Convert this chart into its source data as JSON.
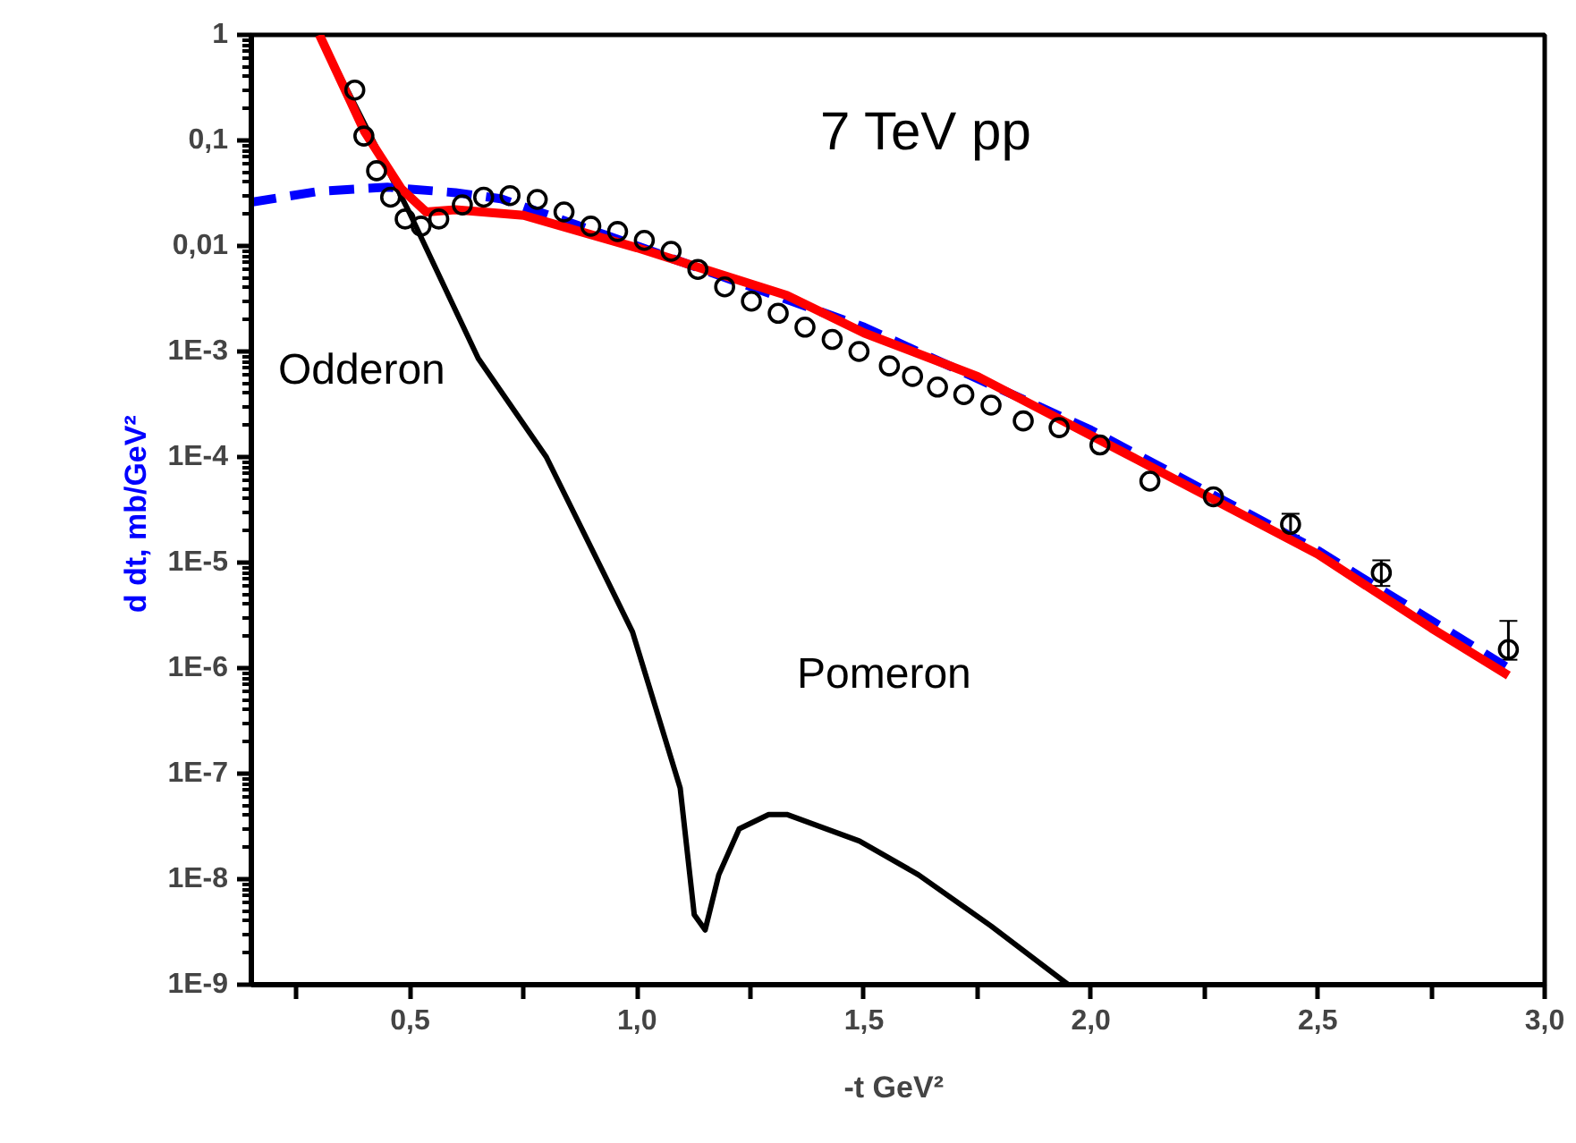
{
  "chart_data": {
    "type": "line",
    "title": "7 TeV  pp",
    "xlabel": "-t  GeV²",
    "ylabel": "d  dt, mb/GeV²",
    "log": "y",
    "grid": false,
    "xlim": [
      0.15,
      3.0
    ],
    "xticks": [
      {
        "value": 0.25,
        "label": null
      },
      {
        "value": 0.5,
        "label": "0,5"
      },
      {
        "value": 0.75,
        "label": null
      },
      {
        "value": 1.0,
        "label": "1,0"
      },
      {
        "value": 1.25,
        "label": null
      },
      {
        "value": 1.5,
        "label": "1,5"
      },
      {
        "value": 1.75,
        "label": null
      },
      {
        "value": 2.0,
        "label": "2,0"
      },
      {
        "value": 2.25,
        "label": null
      },
      {
        "value": 2.5,
        "label": "2,5"
      },
      {
        "value": 2.75,
        "label": null
      },
      {
        "value": 3.0,
        "label": "3,0"
      }
    ],
    "ylim": [
      1e-09,
      1
    ],
    "yticks": [
      {
        "value": 1e-09,
        "label": "1E-9"
      },
      {
        "value": 1e-08,
        "label": "1E-8"
      },
      {
        "value": 1e-07,
        "label": "1E-7"
      },
      {
        "value": 1e-06,
        "label": "1E-6"
      },
      {
        "value": 1e-05,
        "label": "1E-5"
      },
      {
        "value": 0.0001,
        "label": "1E-4"
      },
      {
        "value": 0.001,
        "label": "1E-3"
      },
      {
        "value": 0.01,
        "label": "0,01"
      },
      {
        "value": 0.1,
        "label": "0,1"
      },
      1
    ],
    "series": [
      {
        "color": "#000000",
        "line_style": "solid",
        "x": [
          0.3,
          0.5,
          0.65,
          0.8,
          0.926,
          0.99,
          1.095,
          1.126,
          1.15,
          1.18,
          1.225,
          1.29,
          1.33,
          1.49,
          1.62,
          1.78,
          1.95
        ],
        "values": [
          1,
          0.02,
          0.00086,
          0.0001,
          8e-06,
          2.2e-06,
          7.3e-08,
          4.6e-09,
          3.3e-09,
          1.1e-08,
          3e-08,
          4.1e-08,
          4.1e-08,
          2.3e-08,
          1.1e-08,
          3.6e-09,
          1e-09
        ]
      },
      {
        "color": "#0000ff",
        "line_style": "dashed",
        "x": [
          0.15,
          0.3,
          0.45,
          0.6,
          0.7,
          1.0,
          1.5,
          2.0,
          2.5,
          2.92
        ],
        "values": [
          0.026,
          0.033,
          0.036,
          0.032,
          0.028,
          0.01,
          0.0017,
          0.00018,
          1.3e-05,
          1e-06
        ]
      },
      {
        "color": "#ff0000",
        "line_style": "solid",
        "x": [
          0.3,
          0.4,
          0.48,
          0.535,
          0.6,
          0.75,
          1.0,
          1.33,
          1.5,
          1.75,
          2.0,
          2.25,
          2.5,
          2.75,
          2.92
        ],
        "values": [
          1,
          0.12,
          0.035,
          0.021,
          0.022,
          0.0195,
          0.0096,
          0.0034,
          0.0015,
          0.00058,
          0.00016,
          4.4e-05,
          1.2e-05,
          2.4e-06,
          8.5e-07
        ]
      },
      {
        "type": "scatter",
        "color": "#000000",
        "marker": "circle",
        "x": [
          0.378,
          0.398,
          0.426,
          0.457,
          0.489,
          0.524,
          0.563,
          0.615,
          0.662,
          0.72,
          0.78,
          0.839,
          0.898,
          0.957,
          1.016,
          1.075,
          1.134,
          1.193,
          1.252,
          1.311,
          1.37,
          1.43,
          1.489,
          1.556,
          1.607,
          1.662,
          1.72,
          1.78,
          1.851,
          1.93,
          2.02,
          2.13,
          2.27,
          2.44,
          2.64,
          2.92
        ],
        "values": [
          0.3,
          0.11,
          0.0516,
          0.029,
          0.018,
          0.0154,
          0.018,
          0.0245,
          0.029,
          0.03,
          0.0276,
          0.021,
          0.0154,
          0.0137,
          0.0113,
          0.0089,
          0.006,
          0.0041,
          0.003,
          0.0023,
          0.0017,
          0.0013,
          0.001,
          0.00073,
          0.00058,
          0.00046,
          0.00039,
          0.00031,
          0.00022,
          0.00019,
          0.00013,
          5.9e-05,
          4.2e-05,
          2.3e-05,
          8e-06,
          1.5e-06
        ],
        "errors": [
          null,
          null,
          null,
          null,
          null,
          null,
          null,
          null,
          null,
          null,
          null,
          null,
          null,
          null,
          null,
          null,
          null,
          null,
          null,
          null,
          null,
          null,
          null,
          null,
          null,
          null,
          null,
          null,
          null,
          null,
          null,
          null,
          null,
          [
            1.8e-05,
            2.9e-05
          ],
          [
            6e-06,
            1.05e-05
          ],
          [
            1.2e-06,
            2.8e-06
          ]
        ]
      }
    ],
    "annotations": [
      "Odderon",
      "Pomeron"
    ]
  }
}
